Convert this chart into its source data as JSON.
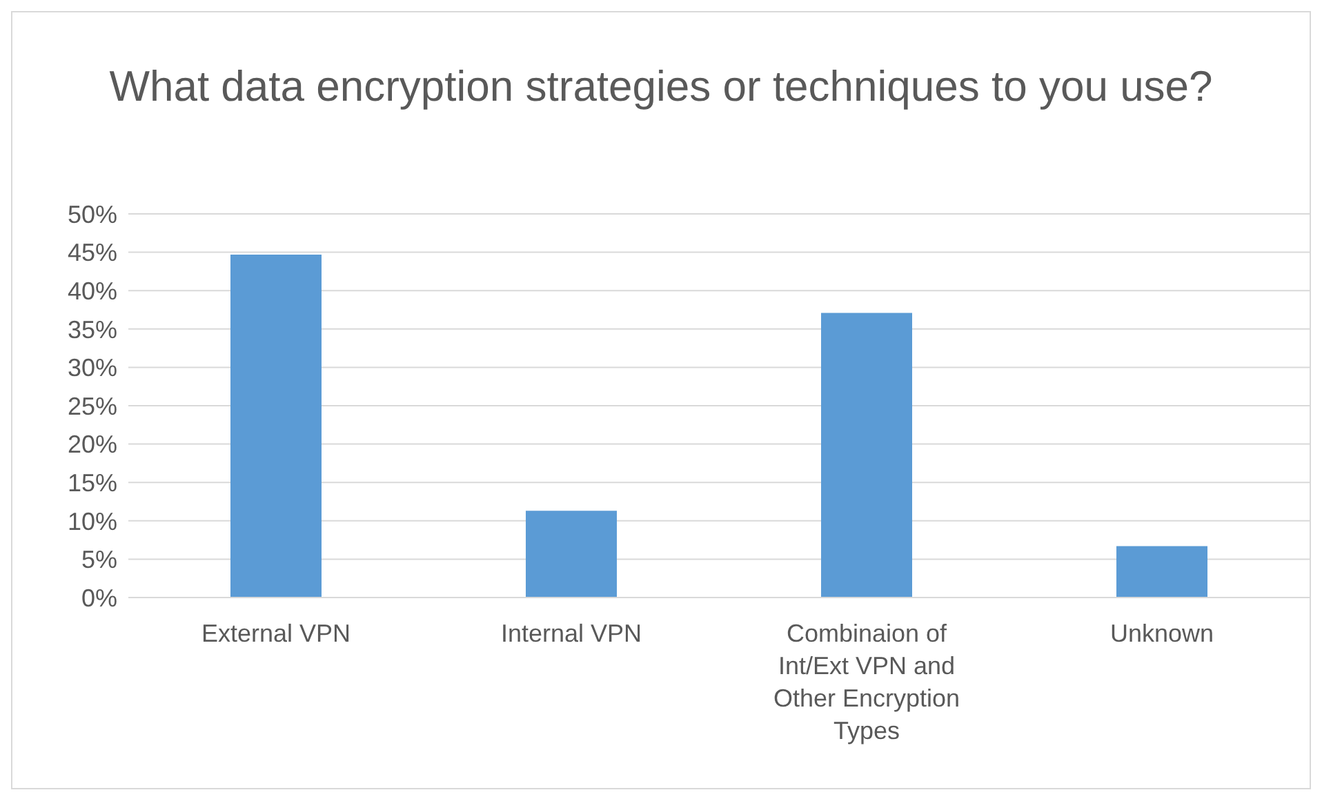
{
  "chart_data": {
    "type": "bar",
    "title": "What data encryption strategies or techniques to you use?",
    "categories": [
      "External VPN",
      "Internal VPN",
      "Combinaion of Int/Ext VPN and Other Encryption Types",
      "Unknown"
    ],
    "values": [
      44.7,
      11.3,
      37.1,
      6.7
    ],
    "color": "#5b9bd5",
    "ylim": [
      0,
      50
    ],
    "yticks": [
      {
        "value": 0,
        "label": "0%"
      },
      {
        "value": 5,
        "label": "5%"
      },
      {
        "value": 10,
        "label": "10%"
      },
      {
        "value": 15,
        "label": "15%"
      },
      {
        "value": 20,
        "label": "20%"
      },
      {
        "value": 25,
        "label": "25%"
      },
      {
        "value": 30,
        "label": "30%"
      },
      {
        "value": 35,
        "label": "35%"
      },
      {
        "value": 40,
        "label": "40%"
      },
      {
        "value": 45,
        "label": "45%"
      },
      {
        "value": 50,
        "label": "50%"
      }
    ],
    "grid": "y",
    "legend": false
  }
}
